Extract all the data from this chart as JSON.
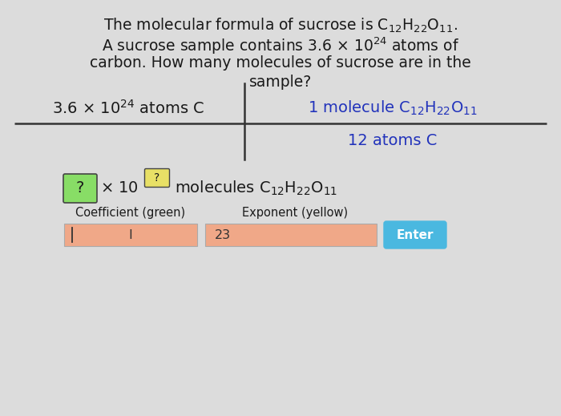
{
  "bg_color": "#dcdcdc",
  "input_color": "#f0a888",
  "enter_color": "#4ab8e0",
  "blue_text_color": "#2233bb",
  "black_text_color": "#1a1a1a",
  "green_box_color": "#88dd66",
  "yellow_box_color": "#e8e066",
  "enter_text": "Enter",
  "coeff_label": "Coefficient (green)",
  "exp_label": "Exponent (yellow)",
  "coeff_placeholder": "I",
  "exp_placeholder": "23"
}
